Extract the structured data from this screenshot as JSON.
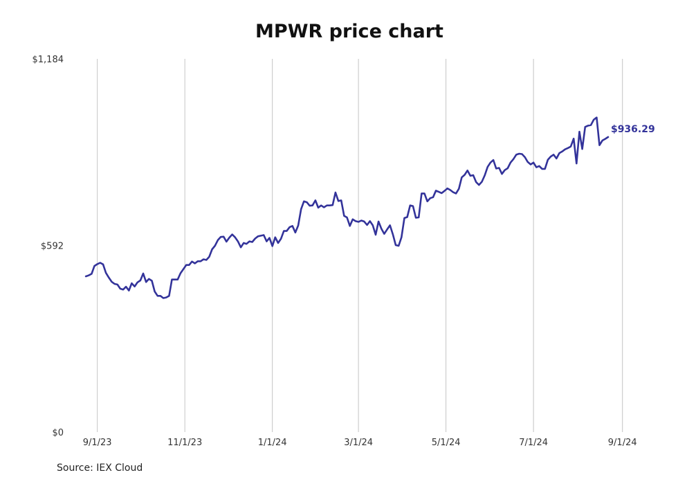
{
  "source": "Source: IEX Cloud",
  "chart_data": {
    "type": "line",
    "title": "MPWR price chart",
    "xlabel": "",
    "ylabel": "",
    "y_ticks": [
      {
        "value": 0,
        "label": "$0"
      },
      {
        "value": 592,
        "label": "$592"
      },
      {
        "value": 1184,
        "label": "$1,184"
      }
    ],
    "ylim": [
      0,
      1184
    ],
    "x_range": [
      "2023-08-23",
      "2024-09-05"
    ],
    "x_ticks": [
      {
        "date": "2023-09-01",
        "label": "9/1/23"
      },
      {
        "date": "2023-11-01",
        "label": "11/1/23"
      },
      {
        "date": "2024-01-01",
        "label": "1/1/24"
      },
      {
        "date": "2024-03-01",
        "label": "3/1/24"
      },
      {
        "date": "2024-05-01",
        "label": "5/1/24"
      },
      {
        "date": "2024-07-01",
        "label": "7/1/24"
      },
      {
        "date": "2024-09-01",
        "label": "9/1/24"
      }
    ],
    "grid": "vertical",
    "line_color": "#33339a",
    "end_label": "$936.29",
    "series": [
      {
        "x": [
          "2023-08-24",
          "2023-08-26",
          "2023-08-28",
          "2023-08-30",
          "2023-09-01",
          "2023-09-03",
          "2023-09-05",
          "2023-09-07",
          "2023-09-09",
          "2023-09-11",
          "2023-09-13",
          "2023-09-15",
          "2023-09-17",
          "2023-09-19",
          "2023-09-21",
          "2023-09-23",
          "2023-09-25",
          "2023-09-27",
          "2023-09-29",
          "2023-10-01",
          "2023-10-03",
          "2023-10-05",
          "2023-10-07",
          "2023-10-09",
          "2023-10-11",
          "2023-10-13",
          "2023-10-15",
          "2023-10-17",
          "2023-10-19",
          "2023-10-21",
          "2023-10-23",
          "2023-10-25",
          "2023-10-27",
          "2023-10-29",
          "2023-10-31",
          "2023-11-02",
          "2023-11-04",
          "2023-11-06",
          "2023-11-08",
          "2023-11-10",
          "2023-11-12",
          "2023-11-14",
          "2023-11-16",
          "2023-11-18",
          "2023-11-20",
          "2023-11-22",
          "2023-11-24",
          "2023-11-26",
          "2023-11-28",
          "2023-11-30",
          "2023-12-02",
          "2023-12-04",
          "2023-12-06",
          "2023-12-08",
          "2023-12-10",
          "2023-12-12",
          "2023-12-14",
          "2023-12-16",
          "2023-12-18",
          "2023-12-20",
          "2023-12-22",
          "2023-12-24",
          "2023-12-26",
          "2023-12-28",
          "2023-12-30",
          "2024-01-01",
          "2024-01-03",
          "2024-01-05",
          "2024-01-07",
          "2024-01-09",
          "2024-01-11",
          "2024-01-13",
          "2024-01-15",
          "2024-01-17",
          "2024-01-19",
          "2024-01-21",
          "2024-01-23",
          "2024-01-25",
          "2024-01-27",
          "2024-01-29",
          "2024-01-31",
          "2024-02-02",
          "2024-02-04",
          "2024-02-06",
          "2024-02-08",
          "2024-02-10",
          "2024-02-12",
          "2024-02-14",
          "2024-02-16",
          "2024-02-18",
          "2024-02-20",
          "2024-02-22",
          "2024-02-24",
          "2024-02-26",
          "2024-02-28",
          "2024-03-01",
          "2024-03-03",
          "2024-03-05",
          "2024-03-07",
          "2024-03-09",
          "2024-03-11",
          "2024-03-13",
          "2024-03-15",
          "2024-03-17",
          "2024-03-19",
          "2024-03-21",
          "2024-03-23",
          "2024-03-25",
          "2024-03-27",
          "2024-03-29",
          "2024-03-31",
          "2024-04-02",
          "2024-04-04",
          "2024-04-06",
          "2024-04-08",
          "2024-04-10",
          "2024-04-12",
          "2024-04-14",
          "2024-04-16",
          "2024-04-18",
          "2024-04-20",
          "2024-04-22",
          "2024-04-24",
          "2024-04-26",
          "2024-04-28",
          "2024-04-30",
          "2024-05-02",
          "2024-05-04",
          "2024-05-06",
          "2024-05-08",
          "2024-05-10",
          "2024-05-12",
          "2024-05-14",
          "2024-05-16",
          "2024-05-18",
          "2024-05-20",
          "2024-05-22",
          "2024-05-24",
          "2024-05-26",
          "2024-05-28",
          "2024-05-30",
          "2024-06-01",
          "2024-06-03",
          "2024-06-05",
          "2024-06-07",
          "2024-06-09",
          "2024-06-11",
          "2024-06-13",
          "2024-06-15",
          "2024-06-17",
          "2024-06-19",
          "2024-06-21",
          "2024-06-23",
          "2024-06-25",
          "2024-06-27",
          "2024-06-29",
          "2024-07-01",
          "2024-07-03",
          "2024-07-05",
          "2024-07-07",
          "2024-07-09",
          "2024-07-11",
          "2024-07-13",
          "2024-07-15",
          "2024-07-17",
          "2024-07-19",
          "2024-07-21",
          "2024-07-23",
          "2024-07-25",
          "2024-07-27",
          "2024-07-29",
          "2024-07-31",
          "2024-08-02",
          "2024-08-04",
          "2024-08-06",
          "2024-08-08",
          "2024-08-10",
          "2024-08-12",
          "2024-08-14",
          "2024-08-16",
          "2024-08-18",
          "2024-08-20",
          "2024-08-22"
        ],
        "values": [
          494,
          497,
          502,
          527,
          533,
          537,
          532,
          505,
          490,
          477,
          470,
          468,
          455,
          452,
          461,
          449,
          472,
          462,
          475,
          481,
          503,
          476,
          486,
          480,
          446,
          432,
          432,
          425,
          427,
          432,
          484,
          484,
          484,
          504,
          517,
          530,
          530,
          541,
          535,
          542,
          542,
          548,
          546,
          556,
          580,
          591,
          609,
          619,
          620,
          604,
          617,
          627,
          618,
          605,
          586,
          600,
          597,
          605,
          603,
          614,
          621,
          623,
          625,
          605,
          616,
          590,
          618,
          600,
          613,
          638,
          638,
          650,
          654,
          633,
          655,
          707,
          732,
          729,
          718,
          719,
          735,
          712,
          719,
          713,
          719,
          719,
          720,
          760,
          733,
          735,
          686,
          681,
          654,
          675,
          669,
          667,
          671,
          668,
          657,
          669,
          656,
          626,
          668,
          645,
          629,
          643,
          656,
          627,
          593,
          591,
          618,
          679,
          682,
          719,
          717,
          680,
          681,
          757,
          757,
          732,
          742,
          745,
          766,
          762,
          758,
          765,
          773,
          768,
          761,
          757,
          772,
          808,
          816,
          830,
          813,
          815,
          793,
          784,
          794,
          814,
          841,
          855,
          863,
          836,
          838,
          819,
          831,
          837,
          855,
          866,
          880,
          883,
          882,
          872,
          857,
          849,
          855,
          840,
          844,
          835,
          835,
          864,
          874,
          880,
          868,
          885,
          890,
          897,
          901,
          906,
          931,
          852,
          953,
          898,
          968,
          972,
          974,
          991,
          998,
          910,
          925,
          930,
          936
        ]
      }
    ]
  }
}
